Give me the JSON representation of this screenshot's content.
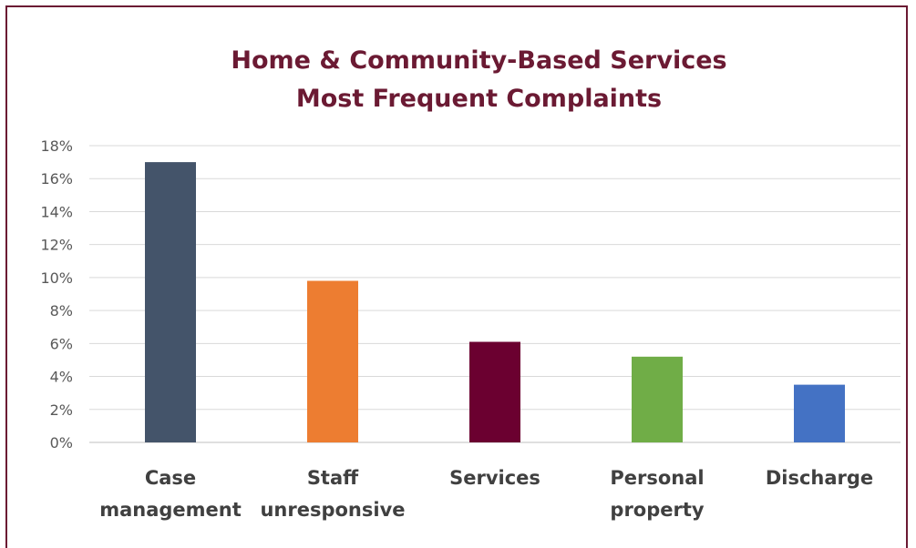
{
  "chart_data": {
    "type": "bar",
    "title": [
      "Home & Community-Based Services",
      "Most Frequent Complaints"
    ],
    "categories": [
      [
        "Case",
        "management"
      ],
      [
        "Staff",
        "unresponsive"
      ],
      [
        "Services"
      ],
      [
        "Personal",
        "property"
      ],
      [
        "Discharge"
      ]
    ],
    "values": [
      17,
      9.8,
      6.1,
      5.2,
      3.5
    ],
    "bar_colors": [
      "#44546a",
      "#ed7d31",
      "#6b0030",
      "#70ad47",
      "#4472c4"
    ],
    "y_ticks": [
      "0%",
      "2%",
      "4%",
      "6%",
      "8%",
      "10%",
      "12%",
      "14%",
      "16%",
      "18%"
    ],
    "ylim": [
      0,
      18
    ],
    "grid": true,
    "legend": "none"
  }
}
